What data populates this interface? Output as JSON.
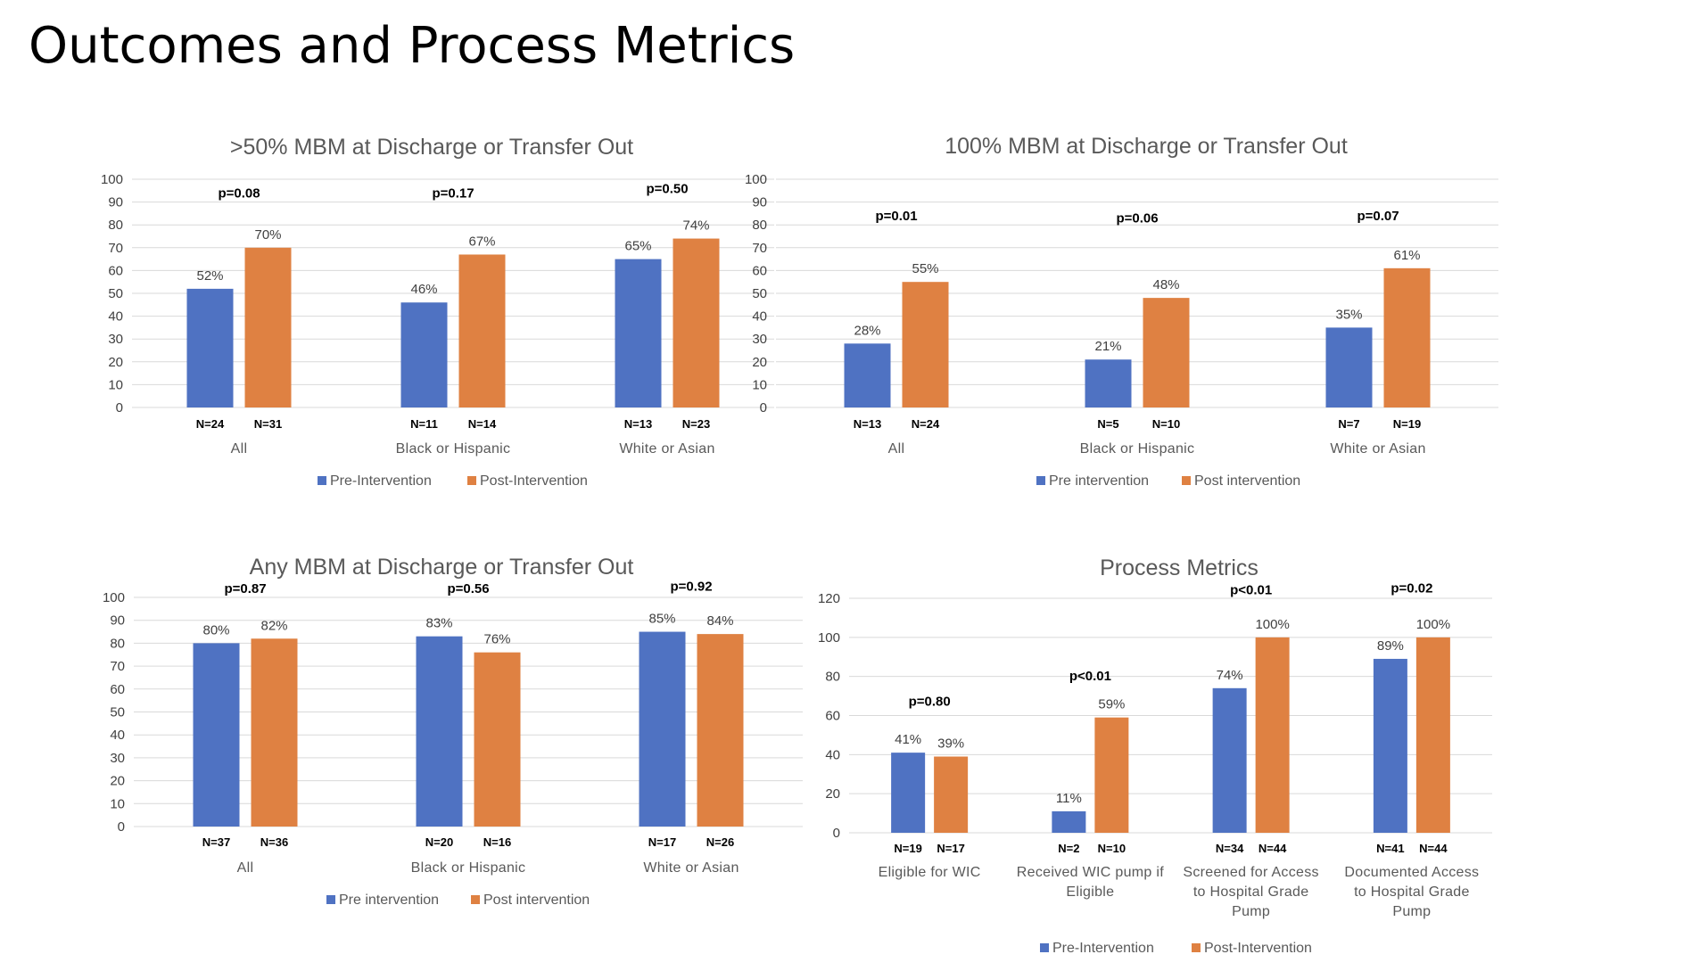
{
  "slide": {
    "title": "Outcomes and Process Metrics"
  },
  "colors": {
    "pre": "#4f72c2",
    "post": "#df8142"
  },
  "chart_data": [
    {
      "id": "c1",
      "type": "bar",
      "title": ">50% MBM at Discharge or Transfer Out",
      "ylim": [
        0,
        100
      ],
      "ytick_step": 10,
      "grid": true,
      "legend_position": "bottom",
      "categories": [
        [
          "All"
        ],
        [
          "Black or Hispanic"
        ],
        [
          "White or Asian"
        ]
      ],
      "series": [
        {
          "name": "Pre-Intervention",
          "values": [
            52,
            46,
            65
          ],
          "n_labels": [
            "N=24",
            "N=11",
            "N=13"
          ]
        },
        {
          "name": "Post-Intervention",
          "values": [
            70,
            67,
            74
          ],
          "n_labels": [
            "N=31",
            "N=14",
            "N=23"
          ]
        }
      ],
      "p_values": [
        "p=0.08",
        "p=0.17",
        "p=0.50"
      ],
      "p_levels": [
        92,
        92,
        94
      ]
    },
    {
      "id": "c2",
      "type": "bar",
      "title": "100% MBM at Discharge or Transfer Out",
      "ylim": [
        0,
        100
      ],
      "ytick_step": 10,
      "grid": true,
      "legend_position": "bottom",
      "categories": [
        [
          "All"
        ],
        [
          "Black or Hispanic"
        ],
        [
          "White or Asian"
        ]
      ],
      "series": [
        {
          "name": "Pre intervention",
          "values": [
            28,
            21,
            35
          ],
          "n_labels": [
            "N=13",
            "N=5",
            "N=7"
          ]
        },
        {
          "name": "Post intervention",
          "values": [
            55,
            48,
            61
          ],
          "n_labels": [
            "N=24",
            "N=10",
            "N=19"
          ]
        }
      ],
      "p_values": [
        "p=0.01",
        "p=0.06",
        "p=0.07"
      ],
      "p_levels": [
        82,
        81,
        82
      ]
    },
    {
      "id": "c3",
      "type": "bar",
      "title": "Any MBM at Discharge or Transfer Out",
      "ylim": [
        0,
        100
      ],
      "ytick_step": 10,
      "grid": true,
      "legend_position": "bottom",
      "categories": [
        [
          "All"
        ],
        [
          "Black or Hispanic"
        ],
        [
          "White or Asian"
        ]
      ],
      "series": [
        {
          "name": "Pre intervention",
          "values": [
            80,
            83,
            85
          ],
          "n_labels": [
            "N=37",
            "N=20",
            "N=17"
          ]
        },
        {
          "name": "Post intervention",
          "values": [
            82,
            76,
            84
          ],
          "n_labels": [
            "N=36",
            "N=16",
            "N=26"
          ]
        }
      ],
      "p_values": [
        "p=0.87",
        "p=0.56",
        "p=0.92"
      ],
      "p_levels": [
        102,
        102,
        103
      ]
    },
    {
      "id": "c4",
      "type": "bar",
      "title": "Process Metrics",
      "ylim": [
        0,
        120
      ],
      "ytick_step": 20,
      "grid": true,
      "legend_position": "bottom",
      "categories": [
        [
          "Eligible for WIC"
        ],
        [
          "Received WIC pump if",
          "Eligible"
        ],
        [
          "Screened for Access",
          "to Hospital Grade",
          "Pump"
        ],
        [
          "Documented Access",
          "to Hospital Grade",
          "Pump"
        ]
      ],
      "series": [
        {
          "name": "Pre-Intervention",
          "values": [
            41,
            11,
            74,
            89
          ],
          "n_labels": [
            "N=19",
            "N=2",
            "N=34",
            "N=41"
          ]
        },
        {
          "name": "Post-Intervention",
          "values": [
            39,
            59,
            100,
            100
          ],
          "n_labels": [
            "N=17",
            "N=10",
            "N=44",
            "N=44"
          ]
        }
      ],
      "p_values": [
        "p=0.80",
        "p<0.01",
        "p<0.01",
        "p=0.02"
      ],
      "p_levels": [
        65,
        78,
        122,
        123
      ]
    }
  ]
}
